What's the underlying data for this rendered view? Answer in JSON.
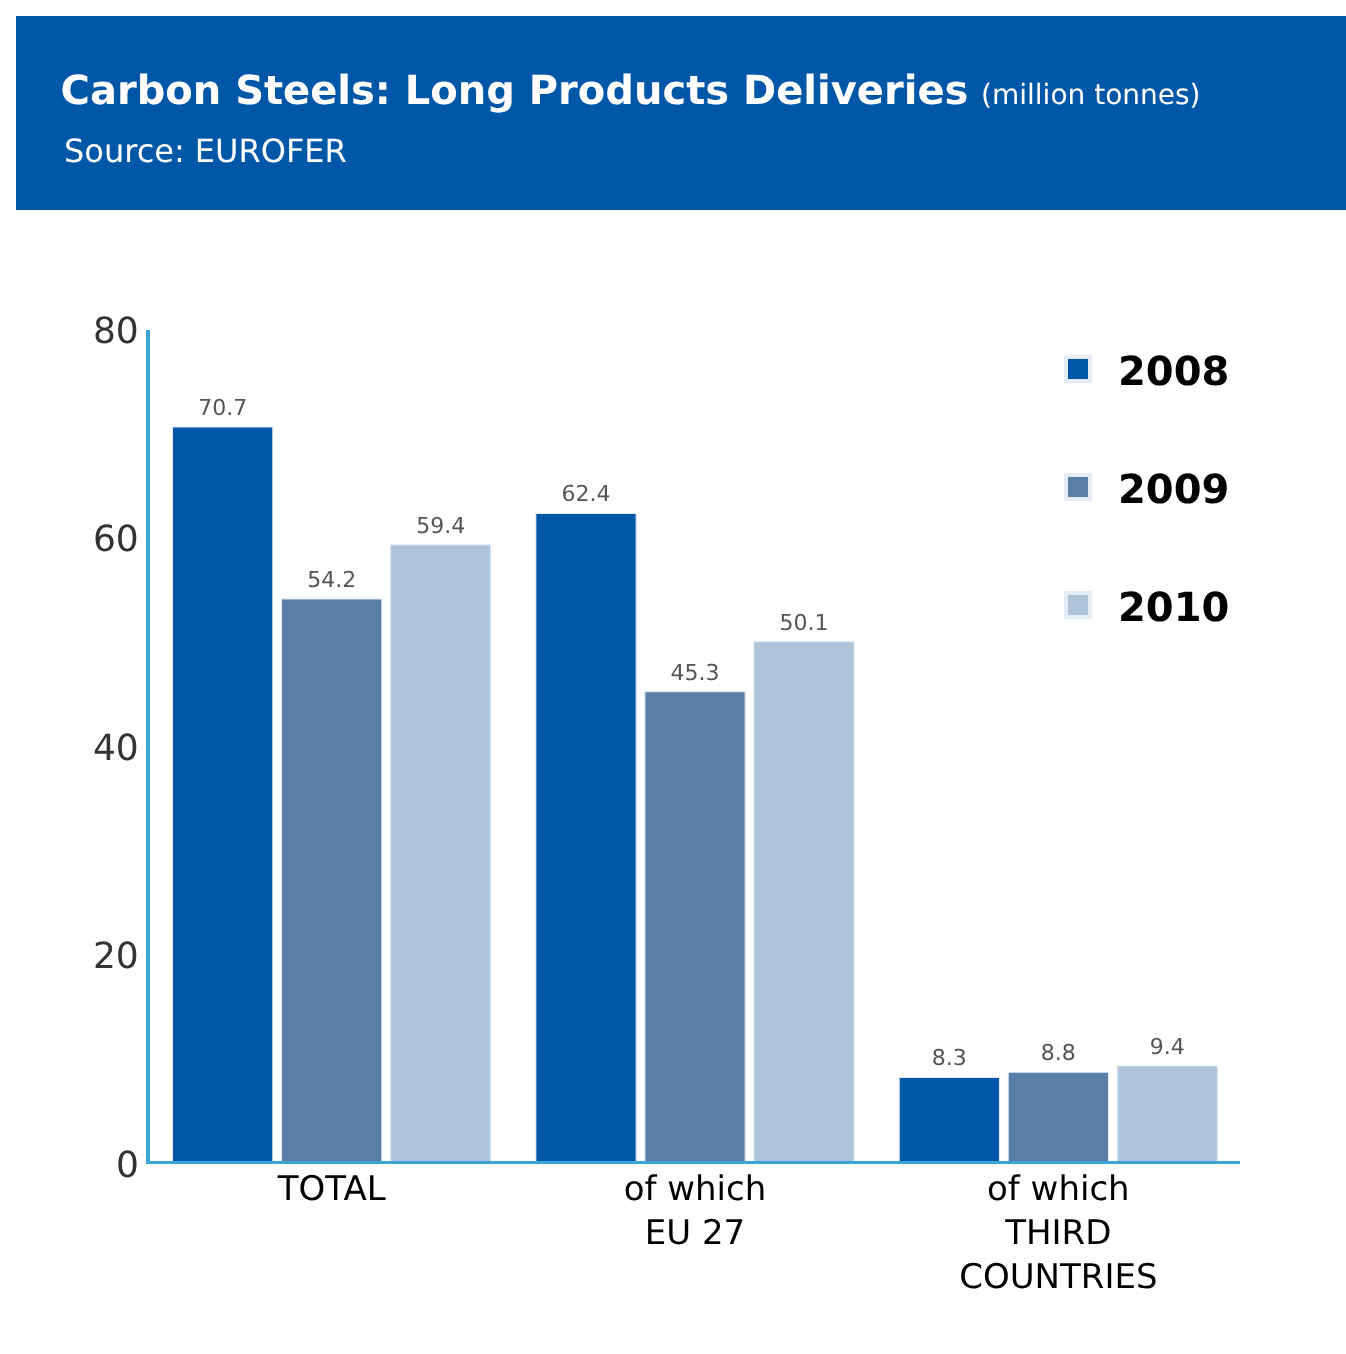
{
  "chart_data": {
    "type": "bar",
    "title": "Carbon Steels: Long Products Deliveries",
    "subtitle": "(million tonnes)",
    "annotations": [
      "Source: EUROFER"
    ],
    "categories": [
      "TOTAL",
      "of which\nEU 27",
      "of which\nTHIRD\nCOUNTRIES"
    ],
    "series": [
      {
        "name": "2008",
        "color": "#0057a8",
        "values": [
          70.7,
          62.4,
          8.3
        ]
      },
      {
        "name": "2009",
        "color": "#5a7fa6",
        "values": [
          54.2,
          45.3,
          8.8
        ]
      },
      {
        "name": "2010",
        "color": "#adc4da",
        "values": [
          59.4,
          50.1,
          9.4
        ]
      }
    ],
    "ylim": [
      0,
      80
    ],
    "yticks": [
      0,
      20,
      40,
      60,
      80
    ],
    "legend": "top right",
    "data_labels": true
  }
}
